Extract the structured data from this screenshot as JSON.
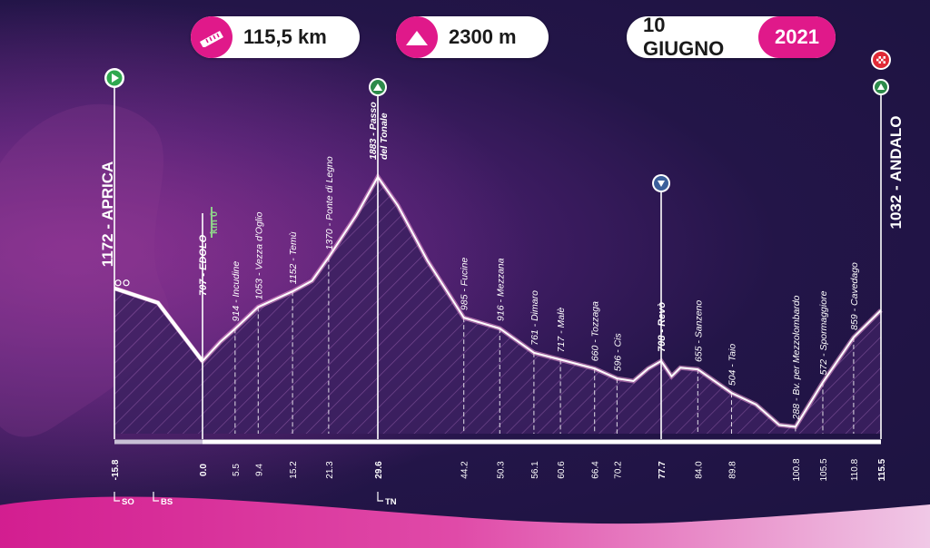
{
  "header": {
    "distance": "115,5 km",
    "elevation": "2300 m",
    "date": "10 GIUGNO",
    "year": "2021",
    "icons": {
      "distance": "ruler-icon",
      "elevation": "mountain-icon"
    }
  },
  "colors": {
    "magenta": "#e0198a",
    "profile_glow": "#f4a3d8",
    "bg_dark": "#1c1340"
  },
  "chart_data": {
    "type": "area",
    "title": "",
    "xlabel": "",
    "ylabel": "",
    "x_unit": "km",
    "y_unit": "m",
    "profile": [
      {
        "km": -15.8,
        "alt": 1172
      },
      {
        "km": -8,
        "alt": 1080
      },
      {
        "km": 0.0,
        "alt": 707
      },
      {
        "km": 3,
        "alt": 830
      },
      {
        "km": 5.5,
        "alt": 914
      },
      {
        "km": 9.4,
        "alt": 1053
      },
      {
        "km": 15.2,
        "alt": 1152
      },
      {
        "km": 18.5,
        "alt": 1220
      },
      {
        "km": 21.3,
        "alt": 1370
      },
      {
        "km": 26,
        "alt": 1640
      },
      {
        "km": 29.6,
        "alt": 1883
      },
      {
        "km": 33,
        "alt": 1700
      },
      {
        "km": 38,
        "alt": 1350
      },
      {
        "km": 44.2,
        "alt": 985
      },
      {
        "km": 50.3,
        "alt": 916
      },
      {
        "km": 56.1,
        "alt": 761
      },
      {
        "km": 60.6,
        "alt": 717
      },
      {
        "km": 66.4,
        "alt": 660
      },
      {
        "km": 70.2,
        "alt": 596
      },
      {
        "km": 73,
        "alt": 580
      },
      {
        "km": 75.5,
        "alt": 660
      },
      {
        "km": 77.7,
        "alt": 708
      },
      {
        "km": 79.5,
        "alt": 610
      },
      {
        "km": 81,
        "alt": 665
      },
      {
        "km": 84.0,
        "alt": 655
      },
      {
        "km": 89.8,
        "alt": 504
      },
      {
        "km": 94,
        "alt": 430
      },
      {
        "km": 98,
        "alt": 300
      },
      {
        "km": 100.8,
        "alt": 288
      },
      {
        "km": 105.5,
        "alt": 572
      },
      {
        "km": 110.8,
        "alt": 859
      },
      {
        "km": 115.5,
        "alt": 1032
      }
    ],
    "places": [
      {
        "km": 5.5,
        "label": "914 - Incudine"
      },
      {
        "km": 9.4,
        "label": "1053 - Vezza d'Oglio"
      },
      {
        "km": 15.2,
        "label": "1152 - Temù"
      },
      {
        "km": 21.3,
        "label": "1370 - Ponte di Legno"
      },
      {
        "km": 44.2,
        "label": "985 - Fucine"
      },
      {
        "km": 50.3,
        "label": "916 - Mezzana"
      },
      {
        "km": 56.1,
        "label": "761 - Dimaro"
      },
      {
        "km": 60.6,
        "label": "717 - Malè"
      },
      {
        "km": 66.4,
        "label": "660 - Tozzaga"
      },
      {
        "km": 70.2,
        "label": "596 - Cis"
      },
      {
        "km": 84.0,
        "label": "655 - Sanzeno"
      },
      {
        "km": 89.8,
        "label": "504 - Taio"
      },
      {
        "km": 100.8,
        "label": "288 - Bv. per Mezzolombardo"
      },
      {
        "km": 105.5,
        "label": "572 - Spormaggiore"
      },
      {
        "km": 110.8,
        "label": "859 - Cavedago"
      }
    ],
    "major_places": [
      {
        "km": 0.0,
        "label": "707 - EDOLO"
      },
      {
        "km": 77.7,
        "label": "708 - Revò"
      }
    ],
    "pass": {
      "km": 29.6,
      "alt_label": "1883 - ",
      "line1": "Passo",
      "line2": "del Tonale"
    },
    "start": {
      "km": -15.8,
      "label": "1172 - APRICA"
    },
    "finish": {
      "km": 115.5,
      "label": "1032 - ANDALO"
    },
    "km0_label": "km 0",
    "km_ticks": [
      "-15.8",
      "0.0",
      "5.5",
      "9.4",
      "15.2",
      "21.3",
      "29.6",
      "44.2",
      "50.3",
      "56.1",
      "60.6",
      "66.4",
      "70.2",
      "77.7",
      "84.0",
      "89.8",
      "100.8",
      "105.5",
      "110.8",
      "115.5"
    ],
    "road_signs": [
      {
        "km": -15.8,
        "label": "SO"
      },
      {
        "km": -8.8,
        "label": "BS"
      },
      {
        "km": 29.6,
        "label": "TN"
      }
    ]
  }
}
